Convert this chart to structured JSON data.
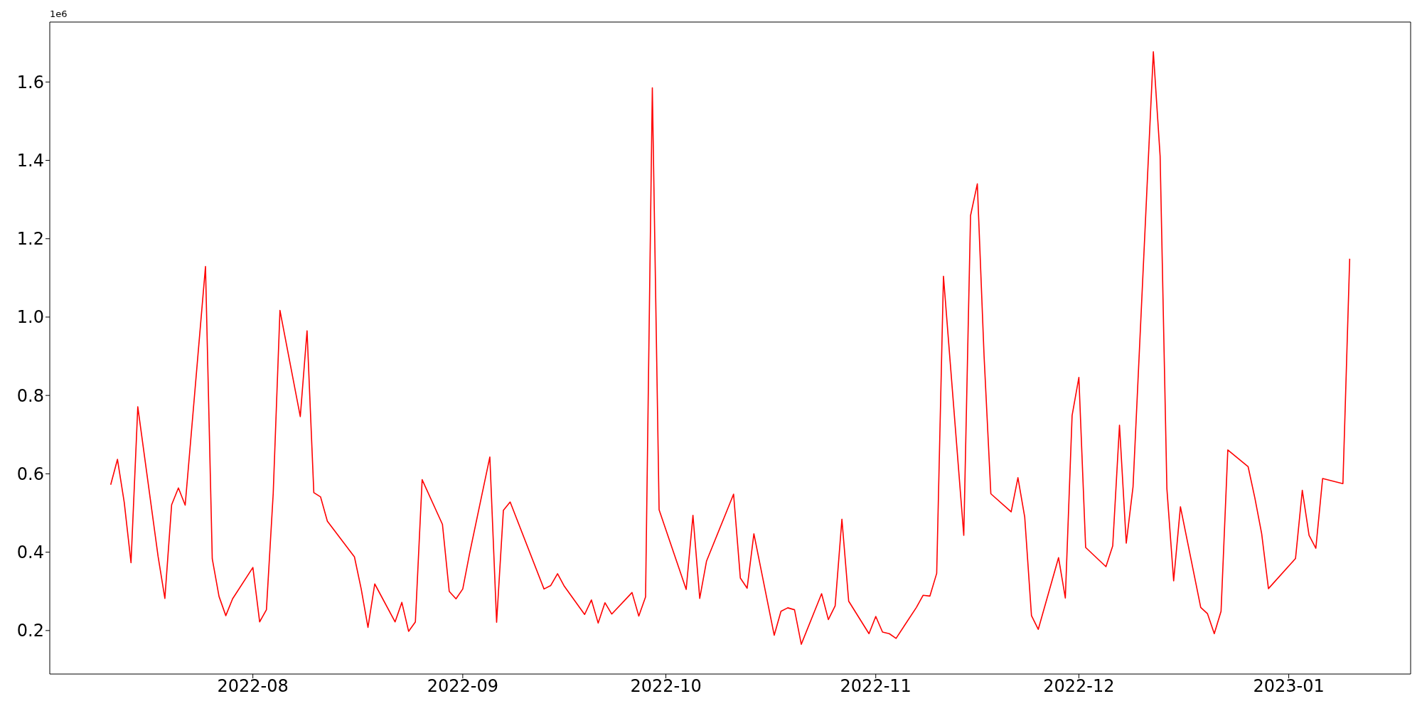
{
  "chart_data": {
    "type": "line",
    "annotations": [
      "1e6"
    ],
    "x": [
      "2022-07-11",
      "2022-07-12",
      "2022-07-13",
      "2022-07-14",
      "2022-07-15",
      "2022-07-18",
      "2022-07-19",
      "2022-07-20",
      "2022-07-21",
      "2022-07-22",
      "2022-07-25",
      "2022-07-26",
      "2022-07-27",
      "2022-07-28",
      "2022-07-29",
      "2022-08-01",
      "2022-08-02",
      "2022-08-03",
      "2022-08-04",
      "2022-08-05",
      "2022-08-08",
      "2022-08-09",
      "2022-08-10",
      "2022-08-11",
      "2022-08-12",
      "2022-08-16",
      "2022-08-17",
      "2022-08-18",
      "2022-08-19",
      "2022-08-22",
      "2022-08-23",
      "2022-08-24",
      "2022-08-25",
      "2022-08-26",
      "2022-08-29",
      "2022-08-30",
      "2022-08-31",
      "2022-09-01",
      "2022-09-02",
      "2022-09-05",
      "2022-09-06",
      "2022-09-07",
      "2022-09-08",
      "2022-09-13",
      "2022-09-14",
      "2022-09-15",
      "2022-09-16",
      "2022-09-19",
      "2022-09-20",
      "2022-09-21",
      "2022-09-22",
      "2022-09-23",
      "2022-09-26",
      "2022-09-27",
      "2022-09-28",
      "2022-09-29",
      "2022-09-30",
      "2022-10-04",
      "2022-10-05",
      "2022-10-06",
      "2022-10-07",
      "2022-10-11",
      "2022-10-12",
      "2022-10-13",
      "2022-10-14",
      "2022-10-17",
      "2022-10-18",
      "2022-10-19",
      "2022-10-20",
      "2022-10-21",
      "2022-10-24",
      "2022-10-25",
      "2022-10-26",
      "2022-10-27",
      "2022-10-28",
      "2022-10-31",
      "2022-11-01",
      "2022-11-02",
      "2022-11-03",
      "2022-11-04",
      "2022-11-07",
      "2022-11-08",
      "2022-11-09",
      "2022-11-10",
      "2022-11-11",
      "2022-11-14",
      "2022-11-15",
      "2022-11-16",
      "2022-11-17",
      "2022-11-18",
      "2022-11-21",
      "2022-11-22",
      "2022-11-23",
      "2022-11-24",
      "2022-11-25",
      "2022-11-28",
      "2022-11-29",
      "2022-11-30",
      "2022-12-01",
      "2022-12-02",
      "2022-12-05",
      "2022-12-06",
      "2022-12-07",
      "2022-12-08",
      "2022-12-09",
      "2022-12-12",
      "2022-12-13",
      "2022-12-14",
      "2022-12-15",
      "2022-12-16",
      "2022-12-19",
      "2022-12-20",
      "2022-12-21",
      "2022-12-22",
      "2022-12-23",
      "2022-12-26",
      "2022-12-27",
      "2022-12-28",
      "2022-12-29",
      "2023-01-02",
      "2023-01-03",
      "2023-01-04",
      "2023-01-05",
      "2023-01-06",
      "2023-01-09",
      "2023-01-10"
    ],
    "series": [
      {
        "color": "#ff0000",
        "values": [
          0.572,
          0.637,
          0.527,
          0.373,
          0.771,
          0.389,
          0.282,
          0.521,
          0.564,
          0.52,
          1.129,
          0.383,
          0.287,
          0.238,
          0.281,
          0.361,
          0.222,
          0.253,
          0.549,
          1.017,
          0.746,
          0.965,
          0.552,
          0.541,
          0.479,
          0.388,
          0.306,
          0.208,
          0.319,
          0.222,
          0.272,
          0.198,
          0.222,
          0.585,
          0.471,
          0.3,
          0.281,
          0.306,
          0.396,
          0.643,
          0.221,
          0.507,
          0.528,
          0.306,
          0.315,
          0.345,
          0.313,
          0.241,
          0.278,
          0.219,
          0.271,
          0.242,
          0.297,
          0.237,
          0.286,
          1.585,
          0.508,
          0.305,
          0.494,
          0.282,
          0.377,
          0.548,
          0.334,
          0.308,
          0.447,
          0.188,
          0.249,
          0.258,
          0.253,
          0.165,
          0.294,
          0.228,
          0.263,
          0.484,
          0.275,
          0.192,
          0.236,
          0.196,
          0.192,
          0.18,
          0.259,
          0.29,
          0.288,
          0.346,
          1.104,
          0.443,
          1.259,
          1.34,
          0.9,
          0.549,
          0.503,
          0.59,
          0.49,
          0.238,
          0.203,
          0.386,
          0.283,
          0.749,
          0.846,
          0.412,
          0.363,
          0.416,
          0.724,
          0.423,
          0.567,
          1.677,
          1.411,
          0.562,
          0.327,
          0.516,
          0.259,
          0.243,
          0.192,
          0.249,
          0.661,
          0.618,
          0.538,
          0.447,
          0.307,
          0.384,
          0.558,
          0.443,
          0.41,
          0.588,
          0.575,
          1.149
        ]
      }
    ],
    "xlim": [
      "2022-07-02",
      "2023-01-19"
    ],
    "xticks": [
      "2022-08",
      "2022-09",
      "2022-10",
      "2022-11",
      "2022-12",
      "2023-01"
    ],
    "ylim": [
      0.089,
      1.753
    ],
    "yticks": [
      0.2,
      0.4,
      0.6,
      0.8,
      {
        "value": 1,
        "label": "1.0"
      },
      1.2,
      1.4,
      1.6
    ],
    "grid": false,
    "legend": false,
    "marker": "none",
    "line_style": "solid"
  }
}
